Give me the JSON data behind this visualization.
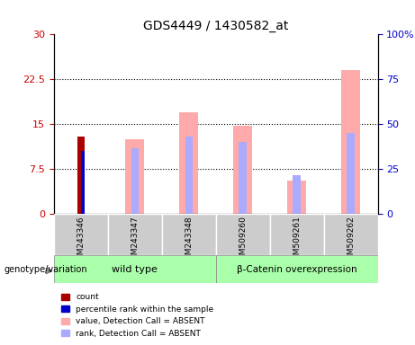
{
  "title": "GDS4449 / 1430582_at",
  "samples": [
    "GSM243346",
    "GSM243347",
    "GSM243348",
    "GSM509260",
    "GSM509261",
    "GSM509262"
  ],
  "groups": {
    "wild type": [
      "GSM243346",
      "GSM243347",
      "GSM243348"
    ],
    "beta-Catenin overexpression": [
      "GSM509260",
      "GSM509261",
      "GSM509262"
    ]
  },
  "count_values": [
    13.0,
    null,
    null,
    null,
    null,
    null
  ],
  "percentile_rank_values": [
    10.5,
    null,
    null,
    null,
    null,
    null
  ],
  "value_absent": [
    null,
    12.5,
    17.0,
    14.8,
    5.5,
    24.0
  ],
  "rank_absent": [
    null,
    11.0,
    13.0,
    12.0,
    6.5,
    13.5
  ],
  "left_ylim": [
    0,
    30
  ],
  "right_ylim": [
    0,
    100
  ],
  "left_yticks": [
    0,
    7.5,
    15,
    22.5,
    30
  ],
  "right_yticks": [
    0,
    25,
    50,
    75,
    100
  ],
  "left_yticklabels": [
    "0",
    "7.5",
    "15",
    "22.5",
    "30"
  ],
  "right_yticklabels": [
    "0",
    "25",
    "50",
    "75",
    "100%"
  ],
  "color_count": "#aa0000",
  "color_percentile": "#0000cc",
  "color_value_absent": "#ffaaaa",
  "color_rank_absent": "#aaaaff",
  "group_colors": {
    "wild type": "#aaffaa",
    "beta-Catenin overexpression": "#aaffaa"
  },
  "legend_items": [
    {
      "label": "count",
      "color": "#aa0000"
    },
    {
      "label": "percentile rank within the sample",
      "color": "#0000cc"
    },
    {
      "label": "value, Detection Call = ABSENT",
      "color": "#ffaaaa"
    },
    {
      "label": "rank, Detection Call = ABSENT",
      "color": "#aaaaff"
    }
  ]
}
